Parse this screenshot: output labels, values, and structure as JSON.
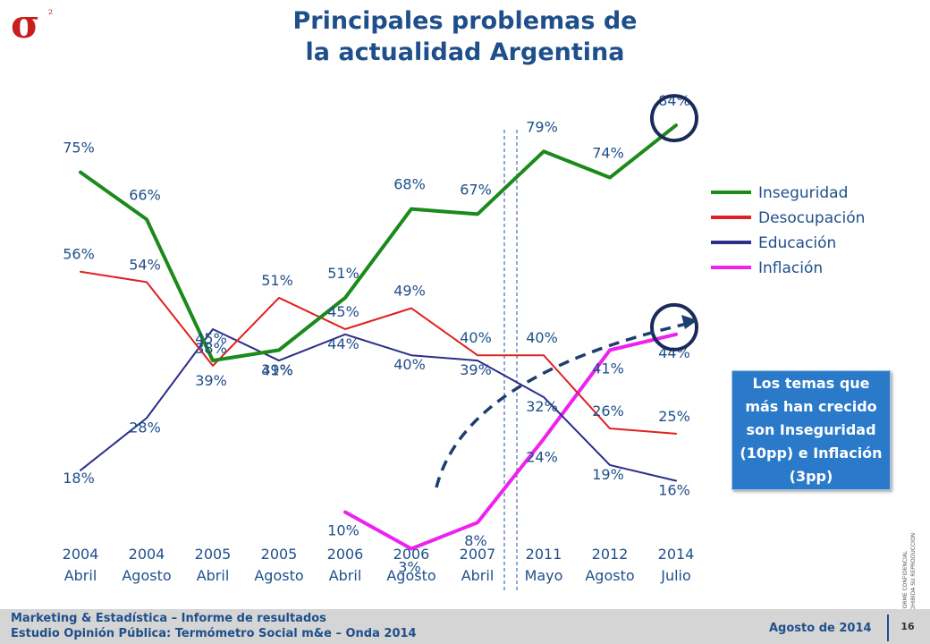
{
  "logo": {
    "text": "σ²"
  },
  "title_line1": "Principales problemas de",
  "title_line2": "la actualidad Argentina",
  "callout": "Los temas que más han crecido son Inseguridad (10pp) e Inflación (3pp)",
  "confidential": [
    "INFORME CONFIDENCIAL",
    "PROHIBIDA SU REPRODUCCION"
  ],
  "footer": {
    "line1": "Marketing & Estadística – Informe de resultados",
    "line2": "Estudio Opinión Pública: Termómetro Social m&e – Onda 2014",
    "date": "Agosto de 2014",
    "page": "16"
  },
  "chart_data": {
    "type": "line",
    "title": "Principales problemas de la actualidad Argentina",
    "categories": [
      [
        "2004",
        "Abril"
      ],
      [
        "2004",
        "Agosto"
      ],
      [
        "2005",
        "Abril"
      ],
      [
        "2005",
        "Agosto"
      ],
      [
        "2006",
        "Abril"
      ],
      [
        "2006",
        "Agosto"
      ],
      [
        "2007",
        "Abril"
      ],
      [
        "2011",
        "Mayo"
      ],
      [
        "2012",
        "Agosto"
      ],
      [
        "2014",
        "Julio"
      ]
    ],
    "ylim": [
      0,
      90
    ],
    "legend_position": "right",
    "break_after_index": 6,
    "highlighted_values": [
      84,
      44
    ],
    "series": [
      {
        "name": "Inseguridad",
        "color": "#1a8a1a",
        "values": [
          75,
          66,
          39,
          41,
          51,
          68,
          67,
          79,
          74,
          84
        ]
      },
      {
        "name": "Desocupación",
        "color": "#e02020",
        "values": [
          56,
          54,
          38,
          51,
          45,
          49,
          40,
          40,
          26,
          25
        ]
      },
      {
        "name": "Educación",
        "color": "#2d2d8a",
        "values": [
          18,
          28,
          45,
          39,
          44,
          40,
          39,
          32,
          19,
          16
        ]
      },
      {
        "name": "Inflación",
        "color": "#ee22ee",
        "values": [
          null,
          null,
          null,
          null,
          10,
          3,
          8,
          24,
          41,
          44
        ]
      }
    ]
  }
}
